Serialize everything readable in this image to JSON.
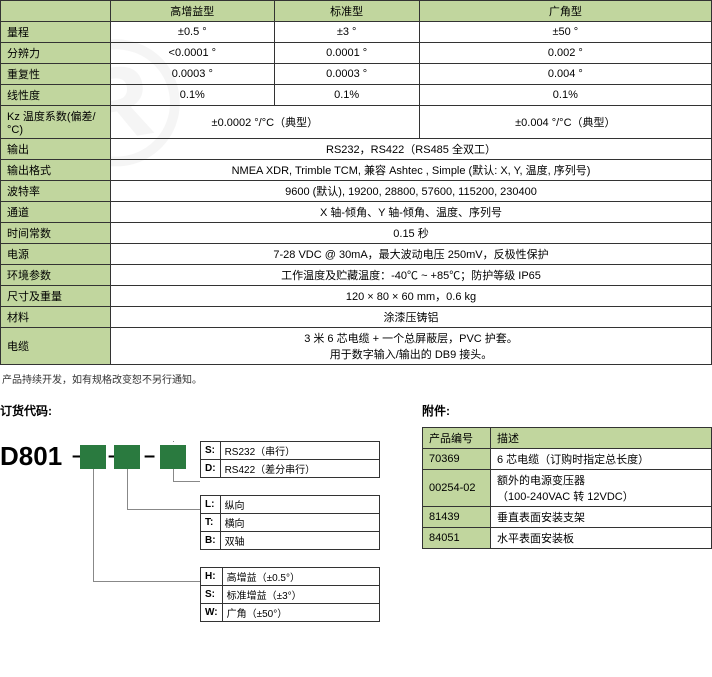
{
  "specTable": {
    "headerCols": [
      "",
      "高增益型",
      "标准型",
      "广角型"
    ],
    "rows": [
      {
        "label": "量程",
        "c": [
          "±0.5 °",
          "±3 °",
          "±50 °"
        ]
      },
      {
        "label": "分辨力",
        "c": [
          "<0.0001 °",
          "0.0001 °",
          "0.002 °"
        ]
      },
      {
        "label": "重复性",
        "c": [
          "0.0003 °",
          "0.0003 °",
          "0.004 °"
        ]
      },
      {
        "label": "线性度",
        "c": [
          "0.1%",
          "0.1%",
          "0.1%"
        ]
      },
      {
        "label": "Kz 温度系数(偏差/°C)",
        "c": [
          "±0.0002 °/°C（典型）",
          "",
          "±0.004 °/°C（典型）"
        ],
        "span2": true
      },
      {
        "label": "输出",
        "full": "RS232，RS422（RS485 全双工）"
      },
      {
        "label": "输出格式",
        "full": "NMEA XDR, Trimble TCM, 兼容 Ashtec , Simple (默认: X, Y, 温度, 序列号)"
      },
      {
        "label": "波特率",
        "full": "9600 (默认), 19200, 28800, 57600, 115200, 230400"
      },
      {
        "label": "通道",
        "full": "X 轴-倾角、Y 轴-倾角、温度、序列号"
      },
      {
        "label": "时间常数",
        "full": "0.15 秒"
      },
      {
        "label": "电源",
        "full": "7-28 VDC @ 30mA，最大波动电压 250mV，反极性保护"
      },
      {
        "label": "环境参数",
        "full": "工作温度及贮藏温度：-40℃ ~ +85℃；防护等级 IP65"
      },
      {
        "label": "尺寸及重量",
        "full": "120 × 80 × 60 mm，0.6 kg"
      },
      {
        "label": "材料",
        "full": "涂漆压铸铝"
      },
      {
        "label": "电缆",
        "full": "3 米 6 芯电缆 + 一个总屏蔽层，PVC 护套。\n用于数字输入/输出的 DB9 接头。"
      }
    ]
  },
  "note": "产品持续开发，如有规格改变恕不另行通知。",
  "orderTitle": "订货代码:",
  "accTitle": "附件:",
  "model": "D801",
  "optGroups": [
    [
      {
        "k": "S:",
        "v": "RS232（串行）"
      },
      {
        "k": "D:",
        "v": "RS422（差分串行）"
      }
    ],
    [
      {
        "k": "L:",
        "v": "纵向"
      },
      {
        "k": "T:",
        "v": "横向"
      },
      {
        "k": "B:",
        "v": "双轴"
      }
    ],
    [
      {
        "k": "H:",
        "v": "高增益（±0.5°）"
      },
      {
        "k": "S:",
        "v": "标准增益（±3°）"
      },
      {
        "k": "W:",
        "v": "广角（±50°）"
      }
    ]
  ],
  "accTable": {
    "header": [
      "产品编号",
      "描述"
    ],
    "rows": [
      [
        "70369",
        "6 芯电缆（订购时指定总长度）"
      ],
      [
        "00254-02",
        "额外的电源变压器\n（100-240VAC 转 12VDC）"
      ],
      [
        "81439",
        "垂直表面安装支架"
      ],
      [
        "84051",
        "水平表面安装板"
      ]
    ]
  }
}
